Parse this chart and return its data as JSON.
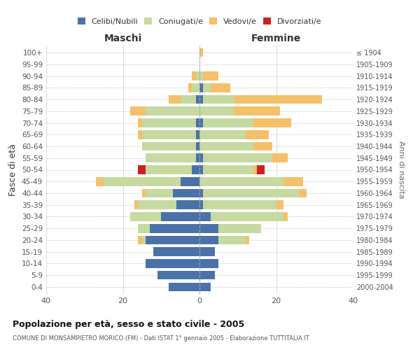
{
  "age_groups": [
    "0-4",
    "5-9",
    "10-14",
    "15-19",
    "20-24",
    "25-29",
    "30-34",
    "35-39",
    "40-44",
    "45-49",
    "50-54",
    "55-59",
    "60-64",
    "65-69",
    "70-74",
    "75-79",
    "80-84",
    "85-89",
    "90-94",
    "95-99",
    "100+"
  ],
  "birth_years": [
    "2000-2004",
    "1995-1999",
    "1990-1994",
    "1985-1989",
    "1980-1984",
    "1975-1979",
    "1970-1974",
    "1965-1969",
    "1960-1964",
    "1955-1959",
    "1950-1954",
    "1945-1949",
    "1940-1944",
    "1935-1939",
    "1930-1934",
    "1925-1929",
    "1920-1924",
    "1915-1919",
    "1910-1914",
    "1905-1909",
    "≤ 1904"
  ],
  "maschi": {
    "celibi": [
      8,
      11,
      14,
      12,
      14,
      13,
      10,
      6,
      7,
      5,
      2,
      1,
      1,
      1,
      1,
      0,
      1,
      0,
      0,
      0,
      0
    ],
    "coniugati": [
      0,
      0,
      0,
      0,
      1,
      3,
      8,
      10,
      7,
      20,
      12,
      13,
      14,
      14,
      14,
      14,
      4,
      2,
      1,
      0,
      0
    ],
    "vedovi": [
      0,
      0,
      0,
      0,
      1,
      0,
      0,
      1,
      1,
      2,
      0,
      0,
      0,
      1,
      1,
      4,
      3,
      1,
      1,
      0,
      0
    ],
    "divorziati": [
      0,
      0,
      0,
      0,
      0,
      0,
      0,
      0,
      0,
      0,
      2,
      0,
      0,
      0,
      0,
      0,
      0,
      0,
      0,
      0,
      0
    ]
  },
  "femmine": {
    "nubili": [
      3,
      4,
      5,
      4,
      5,
      5,
      3,
      1,
      1,
      0,
      1,
      1,
      0,
      0,
      1,
      0,
      1,
      1,
      0,
      0,
      0
    ],
    "coniugate": [
      0,
      0,
      0,
      0,
      7,
      11,
      19,
      19,
      25,
      22,
      13,
      18,
      14,
      12,
      13,
      9,
      8,
      2,
      1,
      0,
      0
    ],
    "vedove": [
      0,
      0,
      0,
      0,
      1,
      0,
      1,
      2,
      2,
      5,
      1,
      4,
      5,
      6,
      10,
      12,
      23,
      5,
      4,
      0,
      1
    ],
    "divorziate": [
      0,
      0,
      0,
      0,
      0,
      0,
      0,
      0,
      0,
      0,
      2,
      0,
      0,
      0,
      0,
      0,
      0,
      0,
      0,
      0,
      0
    ]
  },
  "colors": {
    "celibi": "#4a72a8",
    "coniugati": "#c5d9a0",
    "vedovi": "#f5c06a",
    "divorziati": "#cc2222"
  },
  "xlim": 40,
  "title": "Popolazione per età, sesso e stato civile - 2005",
  "subtitle": "COMUNE DI MONSAMPIETRO MORICO (FM) - Dati ISTAT 1° gennaio 2005 - Elaborazione TUTTITALIA.IT",
  "ylabel_left": "Fasce di età",
  "ylabel_right": "Anni di nascita",
  "xlabel_left": "Maschi",
  "xlabel_right": "Femmine",
  "background_color": "#ffffff",
  "grid_color": "#cccccc",
  "bar_height": 0.75
}
